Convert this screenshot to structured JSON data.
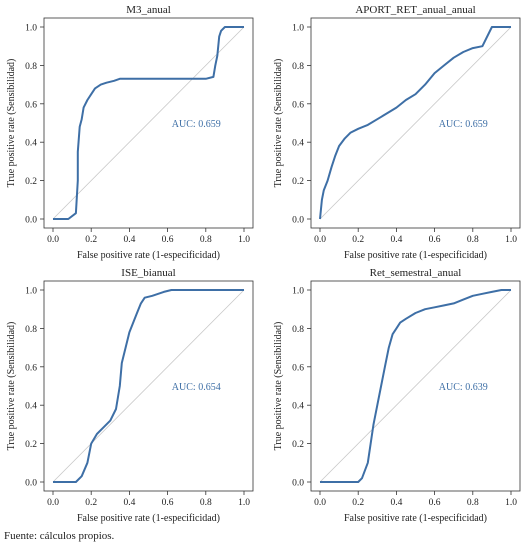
{
  "source_note": "Fuente: cálculos propios.",
  "colors": {
    "curve": "#3e6fa6",
    "diagonal": "#c8c8c8",
    "auc_text": "#3e6fa6",
    "axis": "#333333"
  },
  "chart_data": [
    {
      "type": "line",
      "title": "M3_anual",
      "xlabel": "False positive rate (1-especificidad)",
      "ylabel": "True positive rate (Sensibilidad)",
      "xlim": [
        0,
        1
      ],
      "ylim": [
        0,
        1
      ],
      "xticks": [
        "0.0",
        "0.2",
        "0.4",
        "0.6",
        "0.8",
        "1.0"
      ],
      "yticks": [
        "0.0",
        "0.2",
        "0.4",
        "0.6",
        "0.8",
        "1.0"
      ],
      "annotation": "AUC: 0.659",
      "reference_line": "diagonal",
      "grid": false,
      "series": [
        {
          "x": [
            0.0,
            0.08,
            0.12,
            0.13,
            0.13,
            0.14,
            0.15,
            0.16,
            0.18,
            0.2,
            0.22,
            0.25,
            0.28,
            0.32,
            0.35,
            0.5,
            0.65,
            0.8,
            0.84,
            0.85,
            0.86,
            0.87,
            0.88,
            0.9,
            1.0
          ],
          "y": [
            0.0,
            0.0,
            0.03,
            0.2,
            0.35,
            0.48,
            0.52,
            0.58,
            0.62,
            0.65,
            0.68,
            0.7,
            0.71,
            0.72,
            0.73,
            0.73,
            0.73,
            0.73,
            0.74,
            0.8,
            0.85,
            0.95,
            0.98,
            1.0,
            1.0
          ]
        }
      ]
    },
    {
      "type": "line",
      "title": "APORT_RET_anual_anual",
      "xlabel": "False positive rate (1-especificidad)",
      "ylabel": "True positive rate (Sensibilidad)",
      "xlim": [
        0,
        1
      ],
      "ylim": [
        0,
        1
      ],
      "xticks": [
        "0.0",
        "0.2",
        "0.4",
        "0.6",
        "0.8",
        "1.0"
      ],
      "yticks": [
        "0.0",
        "0.2",
        "0.4",
        "0.6",
        "0.8",
        "1.0"
      ],
      "annotation": "AUC: 0.659",
      "reference_line": "diagonal",
      "grid": false,
      "series": [
        {
          "x": [
            0.0,
            0.01,
            0.02,
            0.04,
            0.06,
            0.08,
            0.1,
            0.13,
            0.16,
            0.2,
            0.25,
            0.3,
            0.35,
            0.4,
            0.45,
            0.5,
            0.55,
            0.6,
            0.65,
            0.7,
            0.75,
            0.8,
            0.85,
            0.9,
            0.95,
            1.0
          ],
          "y": [
            0.0,
            0.1,
            0.15,
            0.2,
            0.27,
            0.33,
            0.38,
            0.42,
            0.45,
            0.47,
            0.49,
            0.52,
            0.55,
            0.58,
            0.62,
            0.65,
            0.7,
            0.76,
            0.8,
            0.84,
            0.87,
            0.89,
            0.9,
            1.0,
            1.0,
            1.0
          ]
        }
      ]
    },
    {
      "type": "line",
      "title": "ISE_bianual",
      "xlabel": "False positive rate (1-especificidad)",
      "ylabel": "True positive rate (Sensibilidad)",
      "xlim": [
        0,
        1
      ],
      "ylim": [
        0,
        1
      ],
      "xticks": [
        "0.0",
        "0.2",
        "0.4",
        "0.6",
        "0.8",
        "1.0"
      ],
      "yticks": [
        "0.0",
        "0.2",
        "0.4",
        "0.6",
        "0.8",
        "1.0"
      ],
      "annotation": "AUC: 0.654",
      "reference_line": "diagonal",
      "grid": false,
      "series": [
        {
          "x": [
            0.0,
            0.12,
            0.15,
            0.18,
            0.2,
            0.23,
            0.26,
            0.3,
            0.33,
            0.35,
            0.36,
            0.38,
            0.4,
            0.42,
            0.44,
            0.46,
            0.48,
            0.52,
            0.58,
            0.62,
            0.68,
            1.0
          ],
          "y": [
            0.0,
            0.0,
            0.03,
            0.1,
            0.2,
            0.25,
            0.28,
            0.32,
            0.38,
            0.5,
            0.62,
            0.7,
            0.78,
            0.83,
            0.88,
            0.93,
            0.96,
            0.97,
            0.99,
            1.0,
            1.0,
            1.0
          ]
        }
      ]
    },
    {
      "type": "line",
      "title": "Ret_semestral_anual",
      "xlabel": "False positive rate (1-especificidad)",
      "ylabel": "True positive rate (Sensibilidad)",
      "xlim": [
        0,
        1
      ],
      "ylim": [
        0,
        1
      ],
      "xticks": [
        "0.0",
        "0.2",
        "0.4",
        "0.6",
        "0.8",
        "1.0"
      ],
      "yticks": [
        "0.0",
        "0.2",
        "0.4",
        "0.6",
        "0.8",
        "1.0"
      ],
      "annotation": "AUC: 0.639",
      "reference_line": "diagonal",
      "grid": false,
      "series": [
        {
          "x": [
            0.0,
            0.2,
            0.22,
            0.25,
            0.28,
            0.3,
            0.32,
            0.34,
            0.36,
            0.38,
            0.4,
            0.42,
            0.45,
            0.5,
            0.55,
            0.6,
            0.65,
            0.7,
            0.75,
            0.8,
            0.85,
            0.9,
            0.95,
            1.0
          ],
          "y": [
            0.0,
            0.0,
            0.02,
            0.1,
            0.3,
            0.4,
            0.5,
            0.6,
            0.7,
            0.77,
            0.8,
            0.83,
            0.85,
            0.88,
            0.9,
            0.91,
            0.92,
            0.93,
            0.95,
            0.97,
            0.98,
            0.99,
            1.0,
            1.0
          ]
        }
      ]
    }
  ]
}
